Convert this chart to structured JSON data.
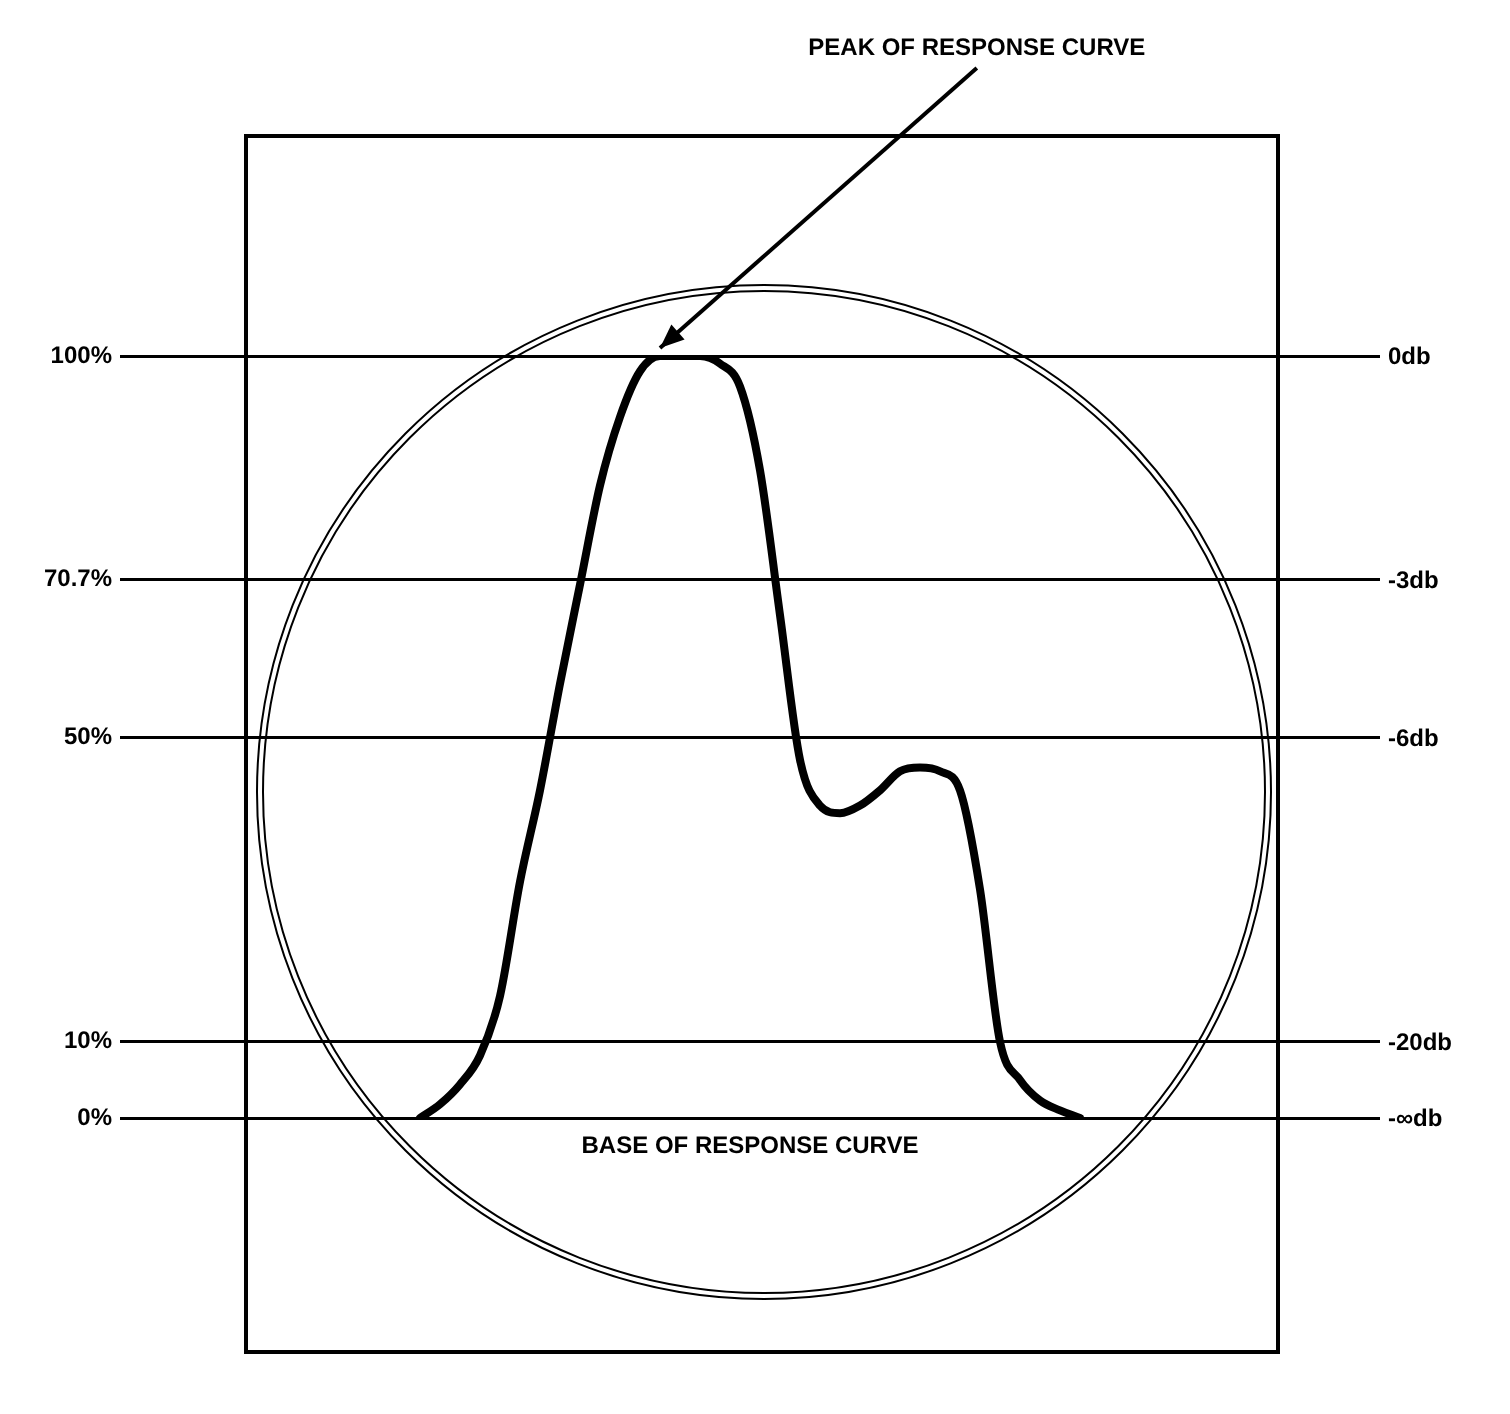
{
  "chart_data": {
    "type": "line",
    "categories": [
      null,
      null,
      null,
      null,
      null,
      null,
      null,
      null,
      null,
      null,
      null,
      null,
      null,
      null,
      null,
      null,
      null,
      null,
      null,
      null,
      null,
      null,
      null,
      null,
      null,
      null,
      null,
      null,
      null,
      null,
      null,
      null,
      null,
      null,
      null,
      null,
      null,
      null,
      null,
      null,
      null,
      null,
      null,
      null,
      null,
      null,
      null,
      null,
      null,
      null,
      null,
      null,
      null,
      null,
      null,
      null,
      null,
      null,
      null,
      null,
      null,
      null,
      null,
      null
    ],
    "series": [
      {
        "color": "#000000",
        "values": [
          null,
          null,
          null,
          null,
          null,
          null,
          null,
          null,
          null,
          null,
          null,
          null,
          null,
          null,
          null,
          0,
          1.8,
          4.4,
          8.2,
          16,
          31,
          43,
          57,
          70,
          83,
          92,
          98,
          100,
          100,
          100,
          99,
          96,
          85,
          66,
          47,
          41,
          40,
          41,
          43,
          45.5,
          46,
          45.5,
          43,
          30,
          10,
          5,
          2.3,
          1,
          0,
          null,
          null,
          null,
          null,
          null,
          null,
          null,
          null,
          null,
          null,
          null,
          null,
          null,
          null,
          null
        ]
      }
    ],
    "ylim": [
      0,
      100
    ],
    "yticks": [
      {
        "value": 0,
        "label": "0%"
      },
      {
        "value": 10,
        "label": "10%"
      },
      {
        "value": 50,
        "label": "50%"
      },
      {
        "value": 70.7,
        "label": "70.7%"
      },
      {
        "value": 100,
        "label": "100%"
      }
    ],
    "annotations": [
      "PEAK OF RESPONSE CURVE",
      "BASE OF RESPONSE CURVE",
      "-∞db",
      "-20db",
      "-6db",
      "-3db",
      "0db"
    ],
    "grid": "y",
    "legend": false,
    "marker": "none",
    "line_style": "solid"
  }
}
